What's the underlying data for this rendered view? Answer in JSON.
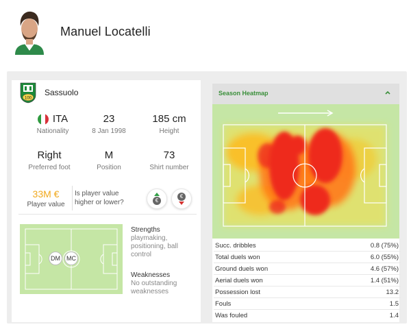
{
  "player": {
    "name": "Manuel Locatelli"
  },
  "team": {
    "name": "Sassuolo"
  },
  "info": {
    "nationality": {
      "value": "ITA",
      "label": "Nationality"
    },
    "age": {
      "value": "23",
      "label": "8 Jan 1998"
    },
    "height": {
      "value": "185 cm",
      "label": "Height"
    },
    "foot": {
      "value": "Right",
      "label": "Preferred foot"
    },
    "position": {
      "value": "M",
      "label": "Position"
    },
    "shirt": {
      "value": "73",
      "label": "Shirt number"
    }
  },
  "market": {
    "value": "33M €",
    "label": "Player value",
    "question": "Is player value higher or lower?",
    "coin_symbol": "€"
  },
  "positions": [
    "DM",
    "MC"
  ],
  "strengths": {
    "title": "Strengths",
    "text": "playmaking, positioning, ball control"
  },
  "weaknesses": {
    "title": "Weaknesses",
    "text": "No outstanding weaknesses"
  },
  "heatmap": {
    "title": "Season Heatmap"
  },
  "stats": [
    {
      "label": "Succ. dribbles",
      "value": "0.8 (75%)"
    },
    {
      "label": "Total duels won",
      "value": "6.0 (55%)"
    },
    {
      "label": "Ground duels won",
      "value": "4.6 (57%)"
    },
    {
      "label": "Aerial duels won",
      "value": "1.4 (51%)"
    },
    {
      "label": "Possession lost",
      "value": "13.2"
    },
    {
      "label": "Fouls",
      "value": "1.5"
    },
    {
      "label": "Was fouled",
      "value": "1.4"
    }
  ],
  "colors": {
    "accent_green": "#3a8f3a",
    "value_orange": "#f0a81c",
    "pitch": "#c5e6a5",
    "heat_hot": "#ee2a1e",
    "heat_warm": "#ffd21a"
  }
}
